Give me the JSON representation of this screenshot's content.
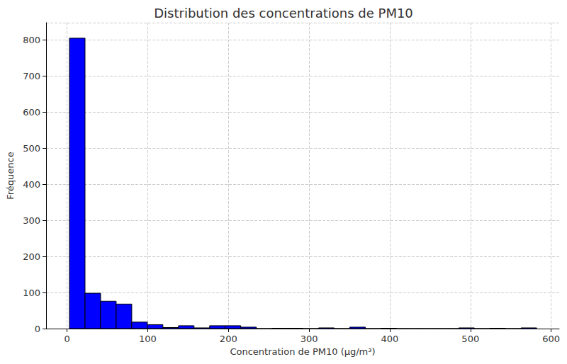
{
  "chart_data": {
    "type": "histogram",
    "title": "Distribution des concentrations de PM10",
    "x_label": "Concentration de PM10 (µg/m³)",
    "y_label": "Fréquence",
    "bins": [
      3,
      22.3,
      41.6,
      60.9,
      80.2,
      99.5,
      118.8,
      138.1,
      157.4,
      176.7,
      196,
      215.3,
      234.6,
      253.9,
      273.2,
      292.5,
      311.8,
      331.1,
      350.4,
      369.7,
      389,
      408.3,
      427.6,
      446.9,
      466.2,
      485.5,
      504.8,
      524.1,
      543.4,
      562.7,
      582
    ],
    "counts": [
      805,
      98,
      76,
      68,
      18,
      11,
      3,
      8,
      2,
      8,
      8,
      4,
      0,
      1,
      1,
      0,
      2,
      0,
      4,
      0,
      1,
      0,
      0,
      0,
      0,
      2,
      0,
      1,
      0,
      2
    ],
    "color": "#0000ff",
    "xlim": [
      -26,
      610
    ],
    "xticks": [
      0,
      100,
      200,
      300,
      400,
      500,
      600
    ],
    "ylim": [
      0,
      848
    ],
    "yticks": [
      0,
      100,
      200,
      300,
      400,
      500,
      600,
      700,
      800
    ],
    "grid": true
  }
}
